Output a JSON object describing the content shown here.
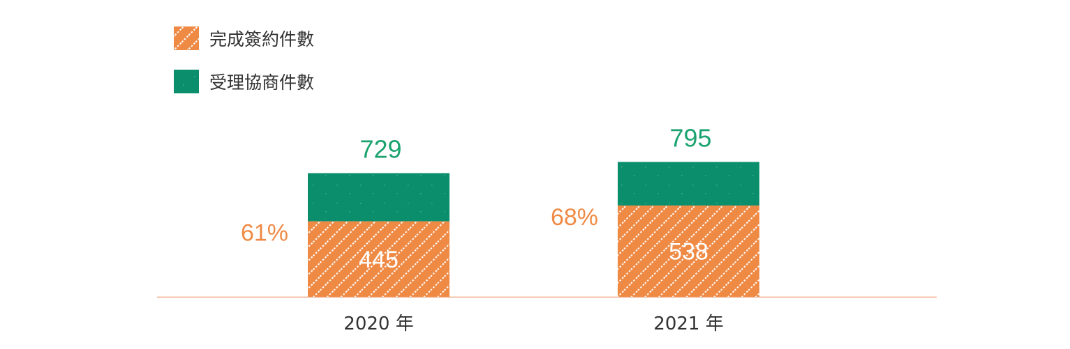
{
  "chart_data": {
    "type": "bar",
    "stacked": true,
    "categories": [
      "2020 年",
      "2021 年"
    ],
    "series": [
      {
        "name": "完成簽約件數",
        "values": [
          445,
          538
        ],
        "value_labels": [
          "445",
          "538"
        ],
        "color": "#EF8A45",
        "pattern": "dotted-diagonal"
      },
      {
        "name": "受理協商件數",
        "values": [
          729,
          795
        ],
        "value_labels": [
          "729",
          "795"
        ],
        "color": "#0B8E6C",
        "pattern": "sparse-dots",
        "label_color": "#1AA36F"
      }
    ],
    "percent_labels": [
      "61%",
      "68%"
    ],
    "percent_color": "#EF8A45",
    "axis_color": "#F0A882",
    "legend_position": "top-left",
    "grid": false
  }
}
